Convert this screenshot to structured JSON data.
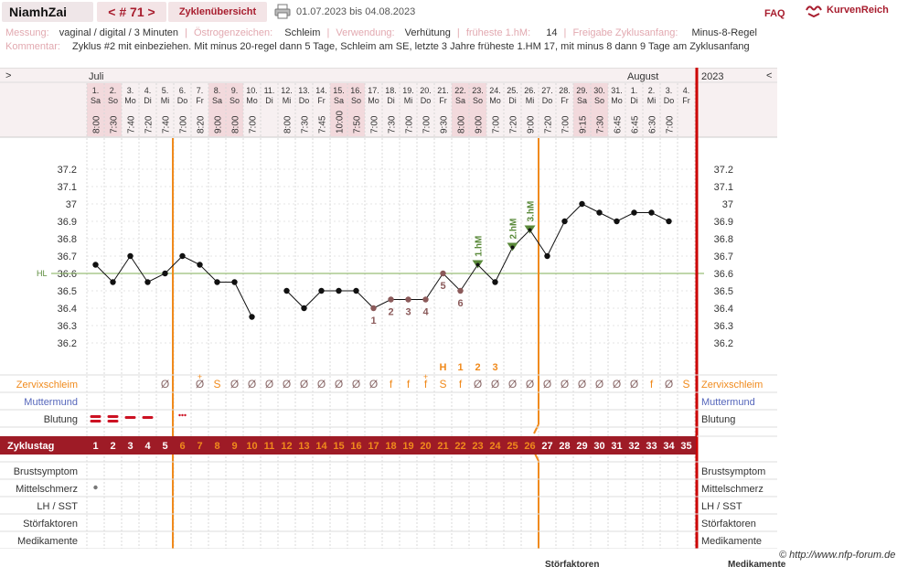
{
  "header": {
    "user": "NiamhZai",
    "cycle_prev": "<",
    "cycle_label": "# 71",
    "cycle_next": ">",
    "overview": "Zyklenübersicht",
    "date_range": "01.07.2023 bis 04.08.2023",
    "faq": "FAQ",
    "brand": "KurvenReich"
  },
  "info": {
    "messung_label": "Messung:",
    "messung": "vaginal / digital / 3 Minuten",
    "oestrogen_label": "Östrogenzeichen:",
    "oestrogen": "Schleim",
    "verwendung_label": "Verwendung:",
    "verwendung": "Verhütung",
    "fruehest_label": "früheste 1.hM:",
    "fruehest": "14",
    "freigabe_label": "Freigabe Zyklusanfang:",
    "freigabe": "Minus-8-Regel",
    "kommentar_label": "Kommentar:",
    "kommentar": "Zyklus #2  mit einbeziehen. Mit minus 20-regel dann 5 Tage,  Schleim am SE, letzte 3 Jahre früheste 1.HM 17, mit minus 8 dann 9 Tage am Zyklusanfang"
  },
  "chart_nav": {
    "left": ">",
    "right": "<",
    "year": "2023"
  },
  "months": [
    {
      "label": "Juli",
      "day_index": 0
    },
    {
      "label": "August",
      "day_index": 31
    }
  ],
  "days": [
    {
      "d": "1.",
      "w": "Sa",
      "t": "8:00"
    },
    {
      "d": "2.",
      "w": "So",
      "t": "7:30"
    },
    {
      "d": "3.",
      "w": "Mo",
      "t": "7:40"
    },
    {
      "d": "4.",
      "w": "Di",
      "t": "7:20"
    },
    {
      "d": "5.",
      "w": "Mi",
      "t": "7:40"
    },
    {
      "d": "6.",
      "w": "Do",
      "t": "7:00"
    },
    {
      "d": "7.",
      "w": "Fr",
      "t": "8:20"
    },
    {
      "d": "8.",
      "w": "Sa",
      "t": "9:00"
    },
    {
      "d": "9.",
      "w": "So",
      "t": "8:00"
    },
    {
      "d": "10.",
      "w": "Mo",
      "t": "7:00"
    },
    {
      "d": "11.",
      "w": "Di",
      "t": ""
    },
    {
      "d": "12.",
      "w": "Mi",
      "t": "8:00"
    },
    {
      "d": "13.",
      "w": "Do",
      "t": "7:30"
    },
    {
      "d": "14.",
      "w": "Fr",
      "t": "7:45"
    },
    {
      "d": "15.",
      "w": "Sa",
      "t": "10:00"
    },
    {
      "d": "16.",
      "w": "So",
      "t": "7:50"
    },
    {
      "d": "17.",
      "w": "Mo",
      "t": "7:00"
    },
    {
      "d": "18.",
      "w": "Di",
      "t": "7:30"
    },
    {
      "d": "19.",
      "w": "Mi",
      "t": "7:00"
    },
    {
      "d": "20.",
      "w": "Do",
      "t": "7:00"
    },
    {
      "d": "21.",
      "w": "Fr",
      "t": "9:30"
    },
    {
      "d": "22.",
      "w": "Sa",
      "t": "8:00"
    },
    {
      "d": "23.",
      "w": "So",
      "t": "9:00"
    },
    {
      "d": "24.",
      "w": "Mo",
      "t": "7:00"
    },
    {
      "d": "25.",
      "w": "Di",
      "t": "7:20"
    },
    {
      "d": "26.",
      "w": "Mi",
      "t": "9:00"
    },
    {
      "d": "27.",
      "w": "Do",
      "t": "7:20"
    },
    {
      "d": "28.",
      "w": "Fr",
      "t": "7:00"
    },
    {
      "d": "29.",
      "w": "Sa",
      "t": "9:15"
    },
    {
      "d": "30.",
      "w": "So",
      "t": "7:30"
    },
    {
      "d": "31.",
      "w": "Mo",
      "t": "6:45"
    },
    {
      "d": "1.",
      "w": "Di",
      "t": "6:45"
    },
    {
      "d": "2.",
      "w": "Mi",
      "t": "6:30"
    },
    {
      "d": "3.",
      "w": "Do",
      "t": "7:00"
    },
    {
      "d": "4.",
      "w": "Fr",
      "t": ""
    }
  ],
  "y_ticks": [
    "37.2",
    "37.1",
    "37",
    "36.9",
    "36.8",
    "36.7",
    "36.6",
    "36.5",
    "36.4",
    "36.3",
    "36.2"
  ],
  "hl_label": "HL",
  "chart_data": {
    "type": "line",
    "ylim": [
      36.2,
      37.2
    ],
    "coverline": 36.6,
    "temperatures": [
      36.65,
      36.55,
      36.7,
      36.55,
      36.6,
      36.7,
      36.65,
      36.55,
      36.55,
      36.35,
      null,
      36.5,
      36.4,
      36.5,
      36.5,
      36.5,
      36.4,
      36.45,
      36.45,
      36.45,
      36.6,
      36.5,
      36.65,
      36.55,
      36.75,
      36.85,
      36.7,
      36.9,
      37.0,
      36.95,
      36.9,
      36.95,
      36.95,
      36.9,
      null
    ],
    "low_labels": [
      {
        "day": 17,
        "text": "1"
      },
      {
        "day": 18,
        "text": "2"
      },
      {
        "day": 19,
        "text": "3"
      },
      {
        "day": 20,
        "text": "4"
      },
      {
        "day": 21,
        "text": "5"
      },
      {
        "day": 22,
        "text": "6"
      }
    ],
    "high_labels": [
      {
        "day": 23,
        "text": "1.hM"
      },
      {
        "day": 25,
        "text": "2.hM"
      },
      {
        "day": 26,
        "text": "3.hM"
      }
    ],
    "mucus_peak": [
      {
        "day": 21,
        "text": "H"
      },
      {
        "day": 22,
        "text": "1"
      },
      {
        "day": 23,
        "text": "2"
      },
      {
        "day": 24,
        "text": "3"
      }
    ]
  },
  "rows": {
    "zervixschleim": "Zervixschleim",
    "muttermund": "Muttermund",
    "blutung": "Blutung",
    "zyklustag": "Zyklustag",
    "brustsymptom": "Brustsymptom",
    "mittelschmerz": "Mittelschmerz",
    "lh_sst": "LH / SST",
    "stoerfaktoren": "Störfaktoren",
    "medikamente": "Medikamente"
  },
  "mucus": [
    "",
    "",
    "",
    "",
    "Ø",
    "",
    "Ø",
    "S",
    "Ø",
    "Ø",
    "Ø",
    "Ø",
    "Ø",
    "Ø",
    "Ø",
    "Ø",
    "Ø",
    "f",
    "f",
    "f",
    "S",
    "f",
    "Ø",
    "Ø",
    "Ø",
    "Ø",
    "Ø",
    "Ø",
    "Ø",
    "Ø",
    "Ø",
    "Ø",
    "f",
    "Ø",
    "S"
  ],
  "mucus_plus": [
    7,
    20
  ],
  "bleeding": [
    "heavy",
    "heavy",
    "medium",
    "medium",
    "",
    "spot",
    "",
    "",
    "",
    "",
    "",
    "",
    "",
    "",
    "",
    "",
    "",
    "",
    "",
    "",
    "",
    "",
    "",
    "",
    "",
    "",
    "",
    "",
    "",
    "",
    "",
    "",
    "",
    "",
    ""
  ],
  "mittelschmerz_day": 1,
  "footer": "© http://www.nfp-forum.de",
  "cutoff": {
    "stoer": "Störfaktoren",
    "medi": "Medikamente"
  },
  "colors": {
    "accent": "#a81d2e",
    "orange": "#f08a1c",
    "green": "#5a8a3a",
    "lowpoint": "#8b5a5a",
    "red_line": "#cc0000"
  }
}
